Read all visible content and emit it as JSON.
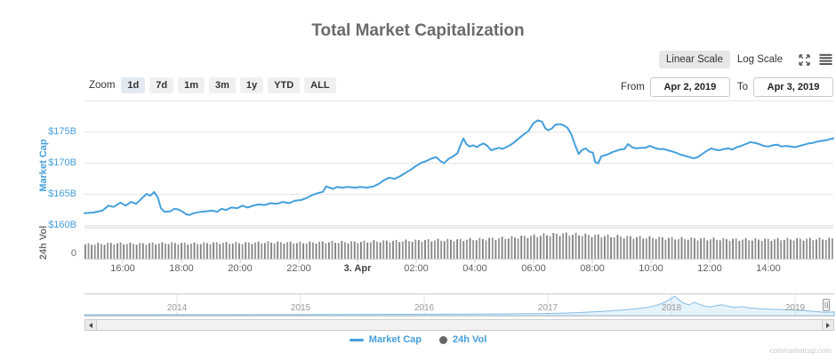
{
  "header": {
    "title": "Total Market Capitalization"
  },
  "scale_toggle": {
    "linear_label": "Linear Scale",
    "log_label": "Log Scale",
    "icons": [
      "expand-icon",
      "hamburger-menu-icon"
    ]
  },
  "zoom_bar": {
    "label": "Zoom",
    "options": [
      {
        "label": "1d",
        "selected": true
      },
      {
        "label": "7d",
        "selected": false
      },
      {
        "label": "1m",
        "selected": false
      },
      {
        "label": "3m",
        "selected": false
      },
      {
        "label": "1y",
        "selected": false
      },
      {
        "label": "YTD",
        "selected": false
      },
      {
        "label": "ALL",
        "selected": false
      }
    ],
    "from_label": "From",
    "from_value": "Apr 2, 2019",
    "to_label": "To",
    "to_value": "Apr 3, 2019"
  },
  "legend": {
    "items": [
      {
        "label": "Market Cap",
        "marker": "line",
        "color": "#459FDB"
      },
      {
        "label": "24h Vol",
        "marker": "circle",
        "color": "#666666"
      }
    ]
  },
  "watermark": "coinmarketcap.com",
  "colors": {
    "accent_blue": "#459FDB",
    "navigator_fill": "rgba(69,159,219,0.13)",
    "navigator_line": "#85bce3",
    "volume_gray": "#858585",
    "grid": "#e6e6e6",
    "axis_text": "#606060"
  },
  "chart_data": {
    "type": "line",
    "title": "Total Market Capitalization",
    "y_axis": {
      "title": "Market Cap",
      "tick_labels": [
        "$175B",
        "$170B",
        "$165B",
        "$160B"
      ],
      "tick_values_billions": [
        175,
        170,
        165,
        160
      ]
    },
    "y_axis2": {
      "title": "24h Vol",
      "tick_labels": [
        "0"
      ]
    },
    "x_axis": {
      "tick_labels": [
        "16:00",
        "18:00",
        "20:00",
        "22:00",
        "3. Apr",
        "02:00",
        "04:00",
        "06:00",
        "08:00",
        "10:00",
        "12:00",
        "14:00"
      ]
    },
    "series": [
      {
        "name": "Market Cap",
        "unit": "USD billions",
        "color": "#459FDB",
        "points": [
          [
            0.0,
            161.9
          ],
          [
            0.012,
            162.0
          ],
          [
            0.024,
            162.3
          ],
          [
            0.032,
            163.1
          ],
          [
            0.039,
            162.9
          ],
          [
            0.048,
            163.6
          ],
          [
            0.055,
            163.1
          ],
          [
            0.062,
            163.7
          ],
          [
            0.069,
            163.4
          ],
          [
            0.075,
            164.1
          ],
          [
            0.083,
            165.0
          ],
          [
            0.088,
            164.7
          ],
          [
            0.093,
            165.3
          ],
          [
            0.098,
            164.4
          ],
          [
            0.102,
            162.7
          ],
          [
            0.107,
            162.1
          ],
          [
            0.115,
            162.2
          ],
          [
            0.12,
            162.6
          ],
          [
            0.125,
            162.5
          ],
          [
            0.13,
            162.2
          ],
          [
            0.136,
            161.7
          ],
          [
            0.14,
            161.6
          ],
          [
            0.146,
            161.9
          ],
          [
            0.155,
            162.1
          ],
          [
            0.163,
            162.2
          ],
          [
            0.171,
            162.3
          ],
          [
            0.177,
            162.1
          ],
          [
            0.183,
            162.6
          ],
          [
            0.189,
            162.4
          ],
          [
            0.196,
            162.8
          ],
          [
            0.204,
            162.7
          ],
          [
            0.211,
            163.1
          ],
          [
            0.218,
            162.8
          ],
          [
            0.225,
            163.1
          ],
          [
            0.233,
            163.3
          ],
          [
            0.24,
            163.2
          ],
          [
            0.249,
            163.5
          ],
          [
            0.257,
            163.4
          ],
          [
            0.265,
            163.7
          ],
          [
            0.273,
            163.5
          ],
          [
            0.281,
            163.9
          ],
          [
            0.289,
            164.0
          ],
          [
            0.296,
            164.3
          ],
          [
            0.304,
            164.8
          ],
          [
            0.311,
            165.1
          ],
          [
            0.318,
            165.3
          ],
          [
            0.323,
            166.2
          ],
          [
            0.327,
            166.0
          ],
          [
            0.332,
            165.8
          ],
          [
            0.337,
            166.1
          ],
          [
            0.344,
            166.0
          ],
          [
            0.352,
            166.1
          ],
          [
            0.361,
            166.0
          ],
          [
            0.369,
            166.1
          ],
          [
            0.377,
            166.0
          ],
          [
            0.386,
            166.2
          ],
          [
            0.393,
            166.6
          ],
          [
            0.4,
            167.2
          ],
          [
            0.407,
            167.6
          ],
          [
            0.414,
            167.4
          ],
          [
            0.421,
            167.8
          ],
          [
            0.429,
            168.4
          ],
          [
            0.436,
            168.9
          ],
          [
            0.443,
            169.5
          ],
          [
            0.45,
            170.0
          ],
          [
            0.457,
            170.3
          ],
          [
            0.464,
            170.7
          ],
          [
            0.47,
            170.9
          ],
          [
            0.475,
            170.3
          ],
          [
            0.48,
            169.9
          ],
          [
            0.486,
            170.6
          ],
          [
            0.492,
            171.0
          ],
          [
            0.498,
            171.5
          ],
          [
            0.502,
            172.8
          ],
          [
            0.506,
            173.9
          ],
          [
            0.51,
            173.0
          ],
          [
            0.514,
            172.6
          ],
          [
            0.519,
            172.8
          ],
          [
            0.524,
            172.5
          ],
          [
            0.529,
            172.9
          ],
          [
            0.533,
            173.1
          ],
          [
            0.538,
            172.7
          ],
          [
            0.543,
            172.0
          ],
          [
            0.548,
            172.2
          ],
          [
            0.554,
            172.4
          ],
          [
            0.558,
            172.2
          ],
          [
            0.563,
            172.5
          ],
          [
            0.568,
            172.8
          ],
          [
            0.573,
            173.2
          ],
          [
            0.577,
            173.6
          ],
          [
            0.582,
            174.1
          ],
          [
            0.587,
            174.6
          ],
          [
            0.593,
            175.1
          ],
          [
            0.599,
            176.3
          ],
          [
            0.605,
            176.8
          ],
          [
            0.611,
            176.6
          ],
          [
            0.615,
            175.6
          ],
          [
            0.619,
            175.2
          ],
          [
            0.624,
            175.5
          ],
          [
            0.629,
            176.1
          ],
          [
            0.635,
            176.2
          ],
          [
            0.64,
            176.0
          ],
          [
            0.645,
            175.6
          ],
          [
            0.65,
            174.6
          ],
          [
            0.655,
            172.9
          ],
          [
            0.66,
            171.4
          ],
          [
            0.664,
            172.0
          ],
          [
            0.669,
            172.3
          ],
          [
            0.674,
            171.8
          ],
          [
            0.679,
            171.6
          ],
          [
            0.682,
            170.1
          ],
          [
            0.686,
            169.9
          ],
          [
            0.69,
            171.0
          ],
          [
            0.695,
            171.2
          ],
          [
            0.7,
            171.4
          ],
          [
            0.705,
            171.7
          ],
          [
            0.71,
            171.9
          ],
          [
            0.715,
            172.1
          ],
          [
            0.721,
            172.2
          ],
          [
            0.726,
            173.0
          ],
          [
            0.731,
            172.5
          ],
          [
            0.737,
            172.3
          ],
          [
            0.743,
            172.4
          ],
          [
            0.749,
            172.4
          ],
          [
            0.755,
            172.7
          ],
          [
            0.761,
            172.4
          ],
          [
            0.767,
            172.2
          ],
          [
            0.773,
            172.2
          ],
          [
            0.779,
            172.0
          ],
          [
            0.785,
            171.8
          ],
          [
            0.79,
            171.6
          ],
          [
            0.796,
            171.3
          ],
          [
            0.802,
            171.1
          ],
          [
            0.808,
            170.9
          ],
          [
            0.813,
            170.7
          ],
          [
            0.819,
            170.9
          ],
          [
            0.825,
            171.4
          ],
          [
            0.831,
            171.9
          ],
          [
            0.837,
            172.3
          ],
          [
            0.842,
            172.1
          ],
          [
            0.848,
            172.0
          ],
          [
            0.854,
            172.2
          ],
          [
            0.86,
            172.3
          ],
          [
            0.865,
            172.1
          ],
          [
            0.871,
            172.5
          ],
          [
            0.877,
            172.7
          ],
          [
            0.883,
            173.0
          ],
          [
            0.889,
            173.3
          ],
          [
            0.895,
            173.2
          ],
          [
            0.901,
            173.0
          ],
          [
            0.907,
            172.7
          ],
          [
            0.913,
            172.6
          ],
          [
            0.919,
            172.8
          ],
          [
            0.925,
            172.9
          ],
          [
            0.931,
            172.6
          ],
          [
            0.937,
            172.7
          ],
          [
            0.943,
            172.6
          ],
          [
            0.949,
            172.5
          ],
          [
            0.955,
            172.7
          ],
          [
            0.961,
            172.9
          ],
          [
            0.967,
            173.1
          ],
          [
            0.973,
            173.2
          ],
          [
            0.979,
            173.4
          ],
          [
            0.984,
            173.5
          ],
          [
            0.99,
            173.6
          ],
          [
            0.996,
            173.8
          ],
          [
            1.0,
            173.9
          ]
        ]
      },
      {
        "name": "24h Vol",
        "type": "column",
        "color": "#858585",
        "relative_height_envelope": [
          [
            0.0,
            0.58
          ],
          [
            0.04,
            0.62
          ],
          [
            0.07,
            0.6
          ],
          [
            0.11,
            0.63
          ],
          [
            0.14,
            0.61
          ],
          [
            0.18,
            0.64
          ],
          [
            0.21,
            0.63
          ],
          [
            0.25,
            0.66
          ],
          [
            0.29,
            0.64
          ],
          [
            0.32,
            0.67
          ],
          [
            0.36,
            0.67
          ],
          [
            0.39,
            0.7
          ],
          [
            0.43,
            0.72
          ],
          [
            0.46,
            0.74
          ],
          [
            0.5,
            0.76
          ],
          [
            0.54,
            0.8
          ],
          [
            0.57,
            0.85
          ],
          [
            0.6,
            0.92
          ],
          [
            0.62,
            0.97
          ],
          [
            0.64,
            1.0
          ],
          [
            0.66,
            0.97
          ],
          [
            0.68,
            0.94
          ],
          [
            0.71,
            0.9
          ],
          [
            0.75,
            0.85
          ],
          [
            0.79,
            0.82
          ],
          [
            0.82,
            0.8
          ],
          [
            0.86,
            0.78
          ],
          [
            0.89,
            0.77
          ],
          [
            0.93,
            0.78
          ],
          [
            0.96,
            0.79
          ],
          [
            1.0,
            0.8
          ]
        ]
      }
    ],
    "navigator": {
      "year_labels": [
        "2014",
        "2015",
        "2016",
        "2017",
        "2018",
        "2019"
      ],
      "relative_points": [
        [
          0.0,
          0.04
        ],
        [
          0.06,
          0.045
        ],
        [
          0.12,
          0.05
        ],
        [
          0.18,
          0.05
        ],
        [
          0.24,
          0.055
        ],
        [
          0.3,
          0.06
        ],
        [
          0.36,
          0.065
        ],
        [
          0.42,
          0.07
        ],
        [
          0.48,
          0.075
        ],
        [
          0.52,
          0.08
        ],
        [
          0.56,
          0.09
        ],
        [
          0.6,
          0.1
        ],
        [
          0.63,
          0.12
        ],
        [
          0.66,
          0.16
        ],
        [
          0.69,
          0.22
        ],
        [
          0.71,
          0.27
        ],
        [
          0.73,
          0.33
        ],
        [
          0.75,
          0.42
        ],
        [
          0.765,
          0.55
        ],
        [
          0.775,
          0.7
        ],
        [
          0.783,
          0.88
        ],
        [
          0.787,
          1.0
        ],
        [
          0.793,
          0.8
        ],
        [
          0.8,
          0.62
        ],
        [
          0.807,
          0.55
        ],
        [
          0.813,
          0.68
        ],
        [
          0.82,
          0.58
        ],
        [
          0.827,
          0.48
        ],
        [
          0.835,
          0.44
        ],
        [
          0.843,
          0.52
        ],
        [
          0.85,
          0.56
        ],
        [
          0.858,
          0.48
        ],
        [
          0.867,
          0.42
        ],
        [
          0.877,
          0.46
        ],
        [
          0.887,
          0.4
        ],
        [
          0.9,
          0.36
        ],
        [
          0.915,
          0.33
        ],
        [
          0.93,
          0.31
        ],
        [
          0.945,
          0.29
        ],
        [
          0.96,
          0.26
        ],
        [
          0.975,
          0.21
        ],
        [
          0.988,
          0.17
        ],
        [
          1.0,
          0.19
        ]
      ]
    }
  }
}
